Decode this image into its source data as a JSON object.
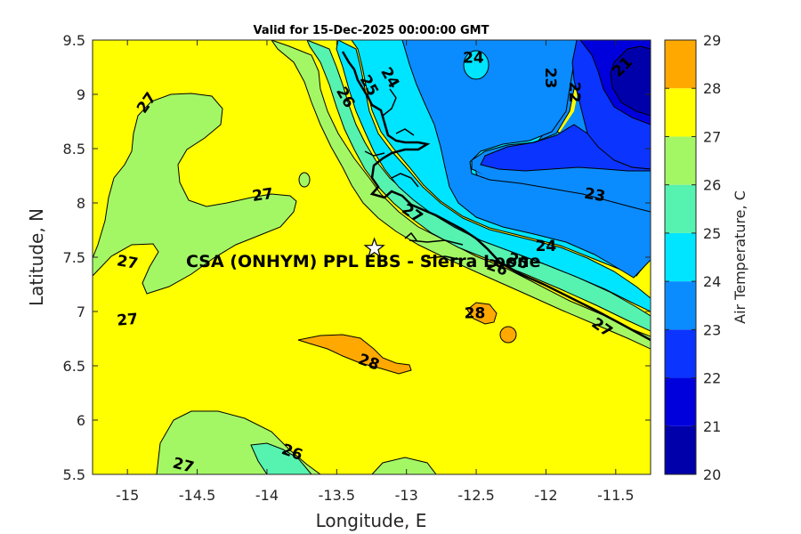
{
  "chart_data": {
    "type": "contour-map",
    "title": "Valid for 15-Dec-2025 00:00:00 GMT",
    "xlabel": "Longitude, E",
    "ylabel": "Latitude, N",
    "xlim": [
      -15.25,
      -11.25
    ],
    "ylim": [
      5.5,
      9.5
    ],
    "xticks": [
      -15,
      -14.5,
      -14,
      -13.5,
      -13,
      -12.5,
      -12,
      -11.5
    ],
    "xtick_labels": [
      "-15",
      "-14.5",
      "-14",
      "-13.5",
      "-13",
      "-12.5",
      "-12",
      "-11.5"
    ],
    "yticks": [
      5.5,
      6,
      6.5,
      7,
      7.5,
      8,
      8.5,
      9,
      9.5
    ],
    "ytick_labels": [
      "5.5",
      "6",
      "6.5",
      "7",
      "7.5",
      "8",
      "8.5",
      "9",
      "9.5"
    ],
    "colorbar": {
      "label": "Air Temperature, C",
      "levels": [
        20,
        21,
        22,
        23,
        24,
        25,
        26,
        27,
        28,
        29
      ],
      "tick_labels": [
        "20",
        "21",
        "22",
        "23",
        "24",
        "25",
        "26",
        "27",
        "28",
        "29"
      ],
      "colors": [
        "#0000aa",
        "#0000dd",
        "#0b34ff",
        "#0a8cff",
        "#00e5ff",
        "#55f2b0",
        "#a4f764",
        "#ffff00",
        "#ffa900",
        "#ff5500"
      ]
    },
    "site": {
      "label": "CSA (ONHYM) PPL EBS  - Sierra Leone",
      "lon": -13.23,
      "lat": 7.58
    },
    "contour_labels": [
      {
        "text": "27",
        "lon": -14.86,
        "lat": 8.92,
        "rot": -55
      },
      {
        "text": "27",
        "lon": -14.03,
        "lat": 8.07,
        "rot": -8
      },
      {
        "text": "27",
        "lon": -15.0,
        "lat": 7.45,
        "rot": 10
      },
      {
        "text": "27",
        "lon": -15.0,
        "lat": 6.92,
        "rot": -5
      },
      {
        "text": "27",
        "lon": -14.6,
        "lat": 5.58,
        "rot": 15
      },
      {
        "text": "27",
        "lon": -12.96,
        "lat": 7.9,
        "rot": 35
      },
      {
        "text": "27",
        "lon": -11.6,
        "lat": 6.85,
        "rot": 35
      },
      {
        "text": "26",
        "lon": -13.44,
        "lat": 8.97,
        "rot": 60
      },
      {
        "text": "26",
        "lon": -13.82,
        "lat": 5.7,
        "rot": 20
      },
      {
        "text": "26",
        "lon": -12.35,
        "lat": 7.4,
        "rot": 20
      },
      {
        "text": "25",
        "lon": -13.27,
        "lat": 9.08,
        "rot": 60
      },
      {
        "text": "25",
        "lon": -12.2,
        "lat": 7.46,
        "rot": 20
      },
      {
        "text": "24",
        "lon": -13.12,
        "lat": 9.15,
        "rot": 60
      },
      {
        "text": "24",
        "lon": -12.52,
        "lat": 9.33,
        "rot": 0
      },
      {
        "text": "24",
        "lon": -12.0,
        "lat": 7.6,
        "rot": 0
      },
      {
        "text": "23",
        "lon": -11.97,
        "lat": 9.15,
        "rot": 90
      },
      {
        "text": "23",
        "lon": -11.65,
        "lat": 8.07,
        "rot": 10
      },
      {
        "text": "22",
        "lon": -11.8,
        "lat": 9.02,
        "rot": 90
      },
      {
        "text": "21",
        "lon": -11.45,
        "lat": 9.25,
        "rot": -45
      },
      {
        "text": "28",
        "lon": -12.51,
        "lat": 6.98,
        "rot": 0
      },
      {
        "text": "28",
        "lon": -13.27,
        "lat": 6.53,
        "rot": 20
      }
    ]
  }
}
